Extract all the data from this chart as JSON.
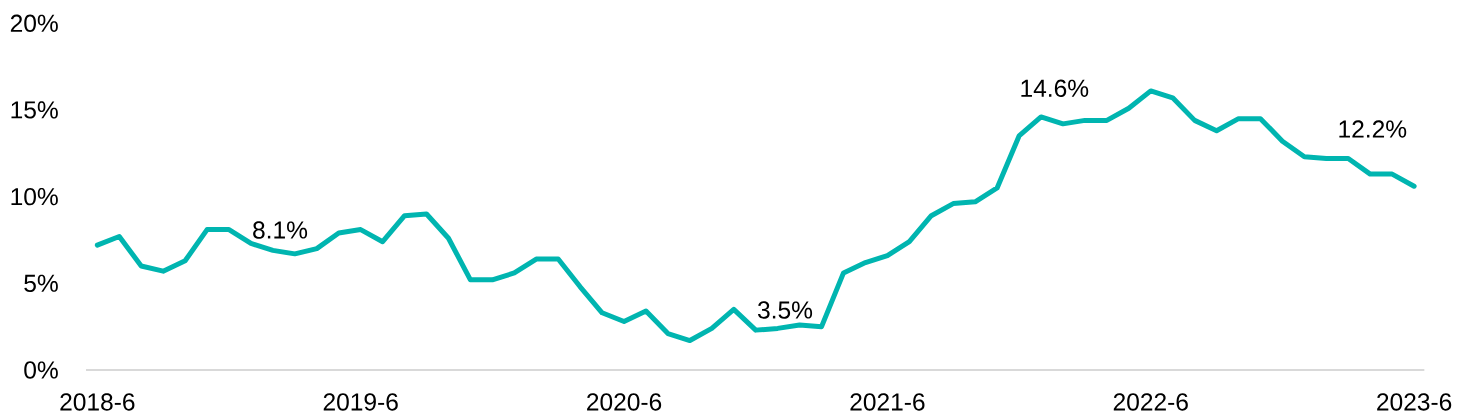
{
  "chart_data": {
    "type": "line",
    "x": [
      "2018-06",
      "2018-07",
      "2018-08",
      "2018-09",
      "2018-10",
      "2018-11",
      "2018-12",
      "2019-01",
      "2019-02",
      "2019-03",
      "2019-04",
      "2019-05",
      "2019-06",
      "2019-07",
      "2019-08",
      "2019-09",
      "2019-10",
      "2019-11",
      "2019-12",
      "2020-01",
      "2020-02",
      "2020-03",
      "2020-04",
      "2020-05",
      "2020-06",
      "2020-07",
      "2020-08",
      "2020-09",
      "2020-10",
      "2020-11",
      "2020-12",
      "2021-01",
      "2021-02",
      "2021-03",
      "2021-04",
      "2021-05",
      "2021-06",
      "2021-07",
      "2021-08",
      "2021-09",
      "2021-10",
      "2021-11",
      "2021-12",
      "2022-01",
      "2022-02",
      "2022-03",
      "2022-04",
      "2022-05",
      "2022-06",
      "2022-07",
      "2022-08",
      "2022-09",
      "2022-10",
      "2022-11",
      "2022-12",
      "2023-01",
      "2023-02",
      "2023-03",
      "2023-04",
      "2023-05",
      "2023-06"
    ],
    "series": [
      {
        "color": "#00b5b0",
        "values": [
          7.2,
          7.7,
          6.0,
          5.7,
          6.3,
          8.1,
          8.1,
          7.3,
          6.9,
          6.7,
          7.0,
          7.9,
          8.1,
          7.4,
          8.9,
          9.0,
          7.6,
          5.2,
          5.2,
          5.6,
          6.4,
          6.4,
          4.8,
          3.3,
          2.8,
          3.4,
          2.1,
          1.7,
          2.4,
          3.5,
          2.3,
          2.4,
          2.6,
          2.5,
          5.6,
          6.2,
          6.6,
          7.4,
          8.9,
          9.6,
          9.7,
          10.5,
          13.5,
          14.6,
          14.2,
          14.4,
          14.4,
          15.1,
          16.1,
          15.7,
          14.4,
          13.8,
          14.5,
          14.5,
          13.2,
          12.3,
          12.2,
          12.2,
          11.3,
          11.3,
          10.6
        ]
      }
    ],
    "xlim": [
      "2018-05-16",
      "2023-06-15"
    ],
    "ylim": [
      0,
      20
    ],
    "xticks": [
      {
        "value": "2018-06",
        "label": "2018-6"
      },
      {
        "value": "2019-06",
        "label": "2019-6"
      },
      {
        "value": "2020-06",
        "label": "2020-6"
      },
      {
        "value": "2021-06",
        "label": "2021-6"
      },
      {
        "value": "2022-06",
        "label": "2022-6"
      },
      {
        "value": "2023-06",
        "label": "2023-6"
      }
    ],
    "yticks": [
      {
        "value": 0,
        "label": "0%"
      },
      {
        "value": 5,
        "label": "5%"
      },
      {
        "value": 10,
        "label": "10%"
      },
      {
        "value": 15,
        "label": "15%"
      },
      {
        "value": 20,
        "label": "20%"
      }
    ],
    "annotations": [
      "8.1%",
      "3.5%",
      "14.6%",
      "12.2%"
    ]
  }
}
